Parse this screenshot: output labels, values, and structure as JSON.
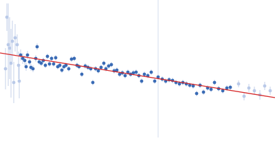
{
  "chart_data": {
    "type": "scatter",
    "xlim": [
      0,
      400
    ],
    "ylim": [
      0,
      200
    ],
    "series": [
      {
        "color": "#b9c9e8",
        "x": [
          8,
          10,
          12,
          14,
          16,
          18,
          20,
          22,
          25,
          27,
          28,
          347,
          355,
          362,
          370,
          378,
          385,
          393
        ],
        "values": [
          100,
          175,
          135,
          130,
          108,
          140,
          80,
          145,
          135,
          105,
          82,
          78,
          60,
          72,
          68,
          62,
          75,
          68
        ],
        "errors": [
          30,
          20,
          60,
          45,
          50,
          30,
          30,
          20,
          15,
          20,
          25,
          5,
          6,
          6,
          6,
          7,
          6,
          6
        ]
      },
      {
        "color": "#3a6bb5",
        "x": [
          30,
          33,
          36,
          38,
          40,
          43,
          45,
          48,
          52,
          54,
          57,
          60,
          63,
          66,
          69,
          72,
          75,
          78,
          81,
          84,
          87,
          90,
          93,
          96,
          100,
          104,
          108,
          112,
          115,
          119,
          124,
          128,
          132,
          135,
          139,
          143,
          147,
          151,
          154,
          158,
          162,
          166,
          170,
          174,
          178,
          182,
          186,
          190,
          194,
          198,
          202,
          206,
          210,
          215,
          220,
          225,
          230,
          236,
          241,
          246,
          251,
          256,
          261,
          266,
          271,
          276,
          281,
          286,
          291,
          296,
          302,
          307,
          312,
          318,
          324,
          330,
          335
        ],
        "values": [
          120,
          115,
          112,
          103,
          120,
          110,
          102,
          100,
          115,
          132,
          110,
          108,
          112,
          105,
          118,
          107,
          115,
          107,
          116,
          103,
          105,
          98,
          103,
          105,
          100,
          114,
          115,
          105,
          103,
          92,
          104,
          102,
          100,
          80,
          100,
          97,
          102,
          108,
          100,
          104,
          106,
          97,
          98,
          92,
          94,
          90,
          95,
          92,
          94,
          95,
          90,
          82,
          92,
          90,
          95,
          82,
          88,
          85,
          82,
          84,
          83,
          80,
          78,
          80,
          78,
          76,
          75,
          64,
          76,
          66,
          72,
          70,
          80,
          71,
          68,
          72,
          73
        ],
        "errors": [
          8,
          8,
          7,
          6,
          6,
          5,
          5,
          5,
          5,
          5,
          4,
          4,
          4,
          4,
          4,
          4,
          4,
          4,
          4,
          4,
          4,
          4,
          4,
          4,
          4,
          4,
          4,
          4,
          4,
          4,
          4,
          4,
          4,
          4,
          4,
          4,
          4,
          4,
          4,
          4,
          4,
          4,
          4,
          4,
          4,
          4,
          4,
          4,
          4,
          4,
          4,
          4,
          4,
          4,
          4,
          4,
          4,
          4,
          4,
          4,
          4,
          4,
          4,
          4,
          4,
          4,
          4,
          4,
          4,
          4,
          4,
          4,
          4,
          4,
          4,
          4,
          4
        ]
      }
    ],
    "fit": {
      "type": "line",
      "color": "#d62728",
      "x": [
        0,
        400
      ],
      "values": [
        123,
        58
      ]
    }
  }
}
